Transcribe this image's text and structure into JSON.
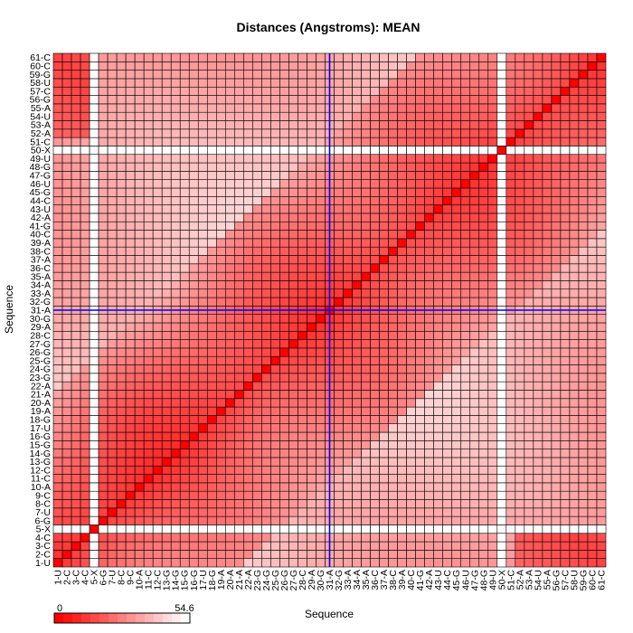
{
  "chart_data": {
    "type": "heatmap",
    "title": "Distances (Angstroms):  MEAN",
    "xlabel": "Sequence",
    "ylabel": "Sequence",
    "labels": [
      "1-U",
      "2-C",
      "3-C",
      "4-C",
      "5-X",
      "6-G",
      "7-U",
      "8-C",
      "9-C",
      "10-A",
      "11-C",
      "12-C",
      "13-G",
      "14-G",
      "15-G",
      "16-G",
      "17-U",
      "18-G",
      "19-A",
      "20-A",
      "21-A",
      "22-A",
      "23-G",
      "24-G",
      "25-G",
      "26-G",
      "27-G",
      "28-C",
      "29-A",
      "30-G",
      "31-A",
      "32-G",
      "33-A",
      "34-A",
      "35-A",
      "36-C",
      "37-A",
      "38-C",
      "39-A",
      "40-C",
      "41-G",
      "42-A",
      "43-U",
      "44-C",
      "45-G",
      "46-U",
      "47-G",
      "48-G",
      "49-U",
      "50-X",
      "51-C",
      "52-A",
      "53-A",
      "54-U",
      "55-A",
      "56-G",
      "57-C",
      "58-U",
      "59-G",
      "60-C",
      "61-C"
    ],
    "masked_residues": [
      "5-X",
      "50-X"
    ],
    "highlight_residue": "31-A",
    "legend": {
      "min_label": "0",
      "max_label": "54.6",
      "min": 0,
      "max": 54.6
    },
    "colors": {
      "low": "#ff0000",
      "high": "#ffffff",
      "grid": "#000000",
      "highlight": "#0000ff"
    }
  }
}
